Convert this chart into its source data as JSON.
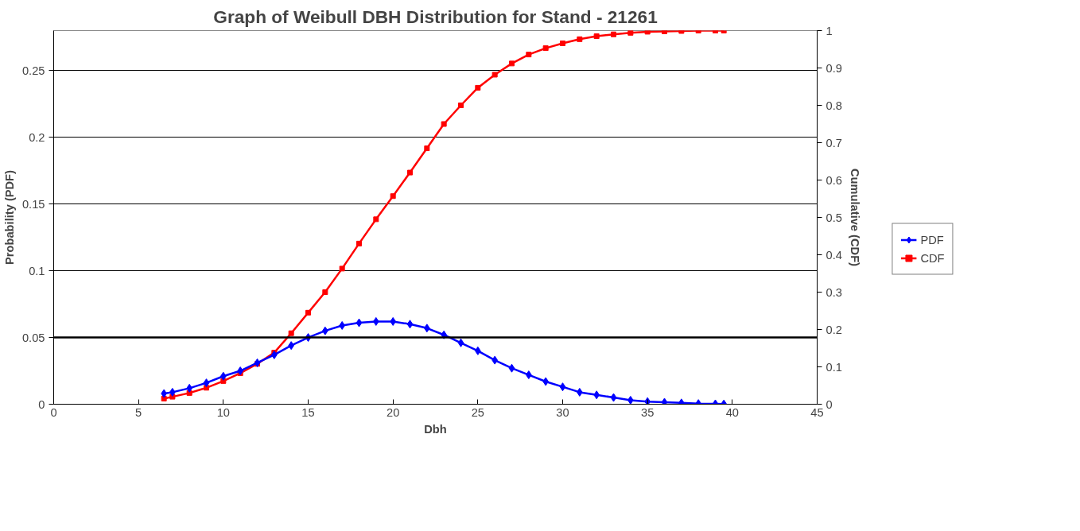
{
  "chart_data": {
    "type": "line",
    "title": "Graph of Weibull DBH Distribution for Stand - 21261",
    "xlabel": "Dbh",
    "ylabel": "Probability (PDF)",
    "y2label": "Cumulative (CDF)",
    "x": [
      6.5,
      7,
      8,
      9,
      10,
      11,
      12,
      13,
      14,
      15,
      16,
      17,
      18,
      19,
      20,
      21,
      22,
      23,
      24,
      25,
      26,
      27,
      28,
      29,
      30,
      31,
      32,
      33,
      34,
      35,
      36,
      37,
      38,
      39,
      39.5
    ],
    "series": [
      {
        "name": "PDF",
        "color": "#0000ff",
        "marker": "diamond",
        "values": [
          0.008,
          0.009,
          0.012,
          0.016,
          0.021,
          0.025,
          0.031,
          0.037,
          0.044,
          0.05,
          0.055,
          0.059,
          0.061,
          0.062,
          0.062,
          0.06,
          0.057,
          0.052,
          0.046,
          0.04,
          0.033,
          0.027,
          0.022,
          0.017,
          0.013,
          0.009,
          0.007,
          0.005,
          0.003,
          0.002,
          0.0015,
          0.001,
          0.0005,
          0.0003,
          0.0002
        ]
      },
      {
        "name": "CDF",
        "color": "#ff0000",
        "marker": "square",
        "axis": "y2",
        "values": [
          0.015,
          0.02,
          0.03,
          0.044,
          0.062,
          0.083,
          0.108,
          0.138,
          0.19,
          0.245,
          0.3,
          0.363,
          0.43,
          0.495,
          0.557,
          0.62,
          0.685,
          0.75,
          0.8,
          0.847,
          0.882,
          0.912,
          0.936,
          0.953,
          0.966,
          0.977,
          0.985,
          0.99,
          0.994,
          0.997,
          0.998,
          0.999,
          1.0,
          1.0,
          1.0
        ]
      }
    ],
    "xlim": [
      0,
      45
    ],
    "xticks": [
      0,
      5,
      10,
      15,
      20,
      25,
      30,
      35,
      40,
      45
    ],
    "ylim": [
      0,
      0.28
    ],
    "yticks": [
      0,
      0.05,
      0.1,
      0.15,
      0.2,
      0.25
    ],
    "y2lim": [
      0,
      1
    ],
    "y2ticks": [
      0,
      0.1,
      0.2,
      0.3,
      0.4,
      0.5,
      0.6,
      0.7,
      0.8,
      0.9,
      1
    ],
    "ref_lines": [
      {
        "axis": "y",
        "value": 0.05,
        "color": "#000000"
      }
    ],
    "grid": "y",
    "legend": "right",
    "line_style": "solid"
  }
}
